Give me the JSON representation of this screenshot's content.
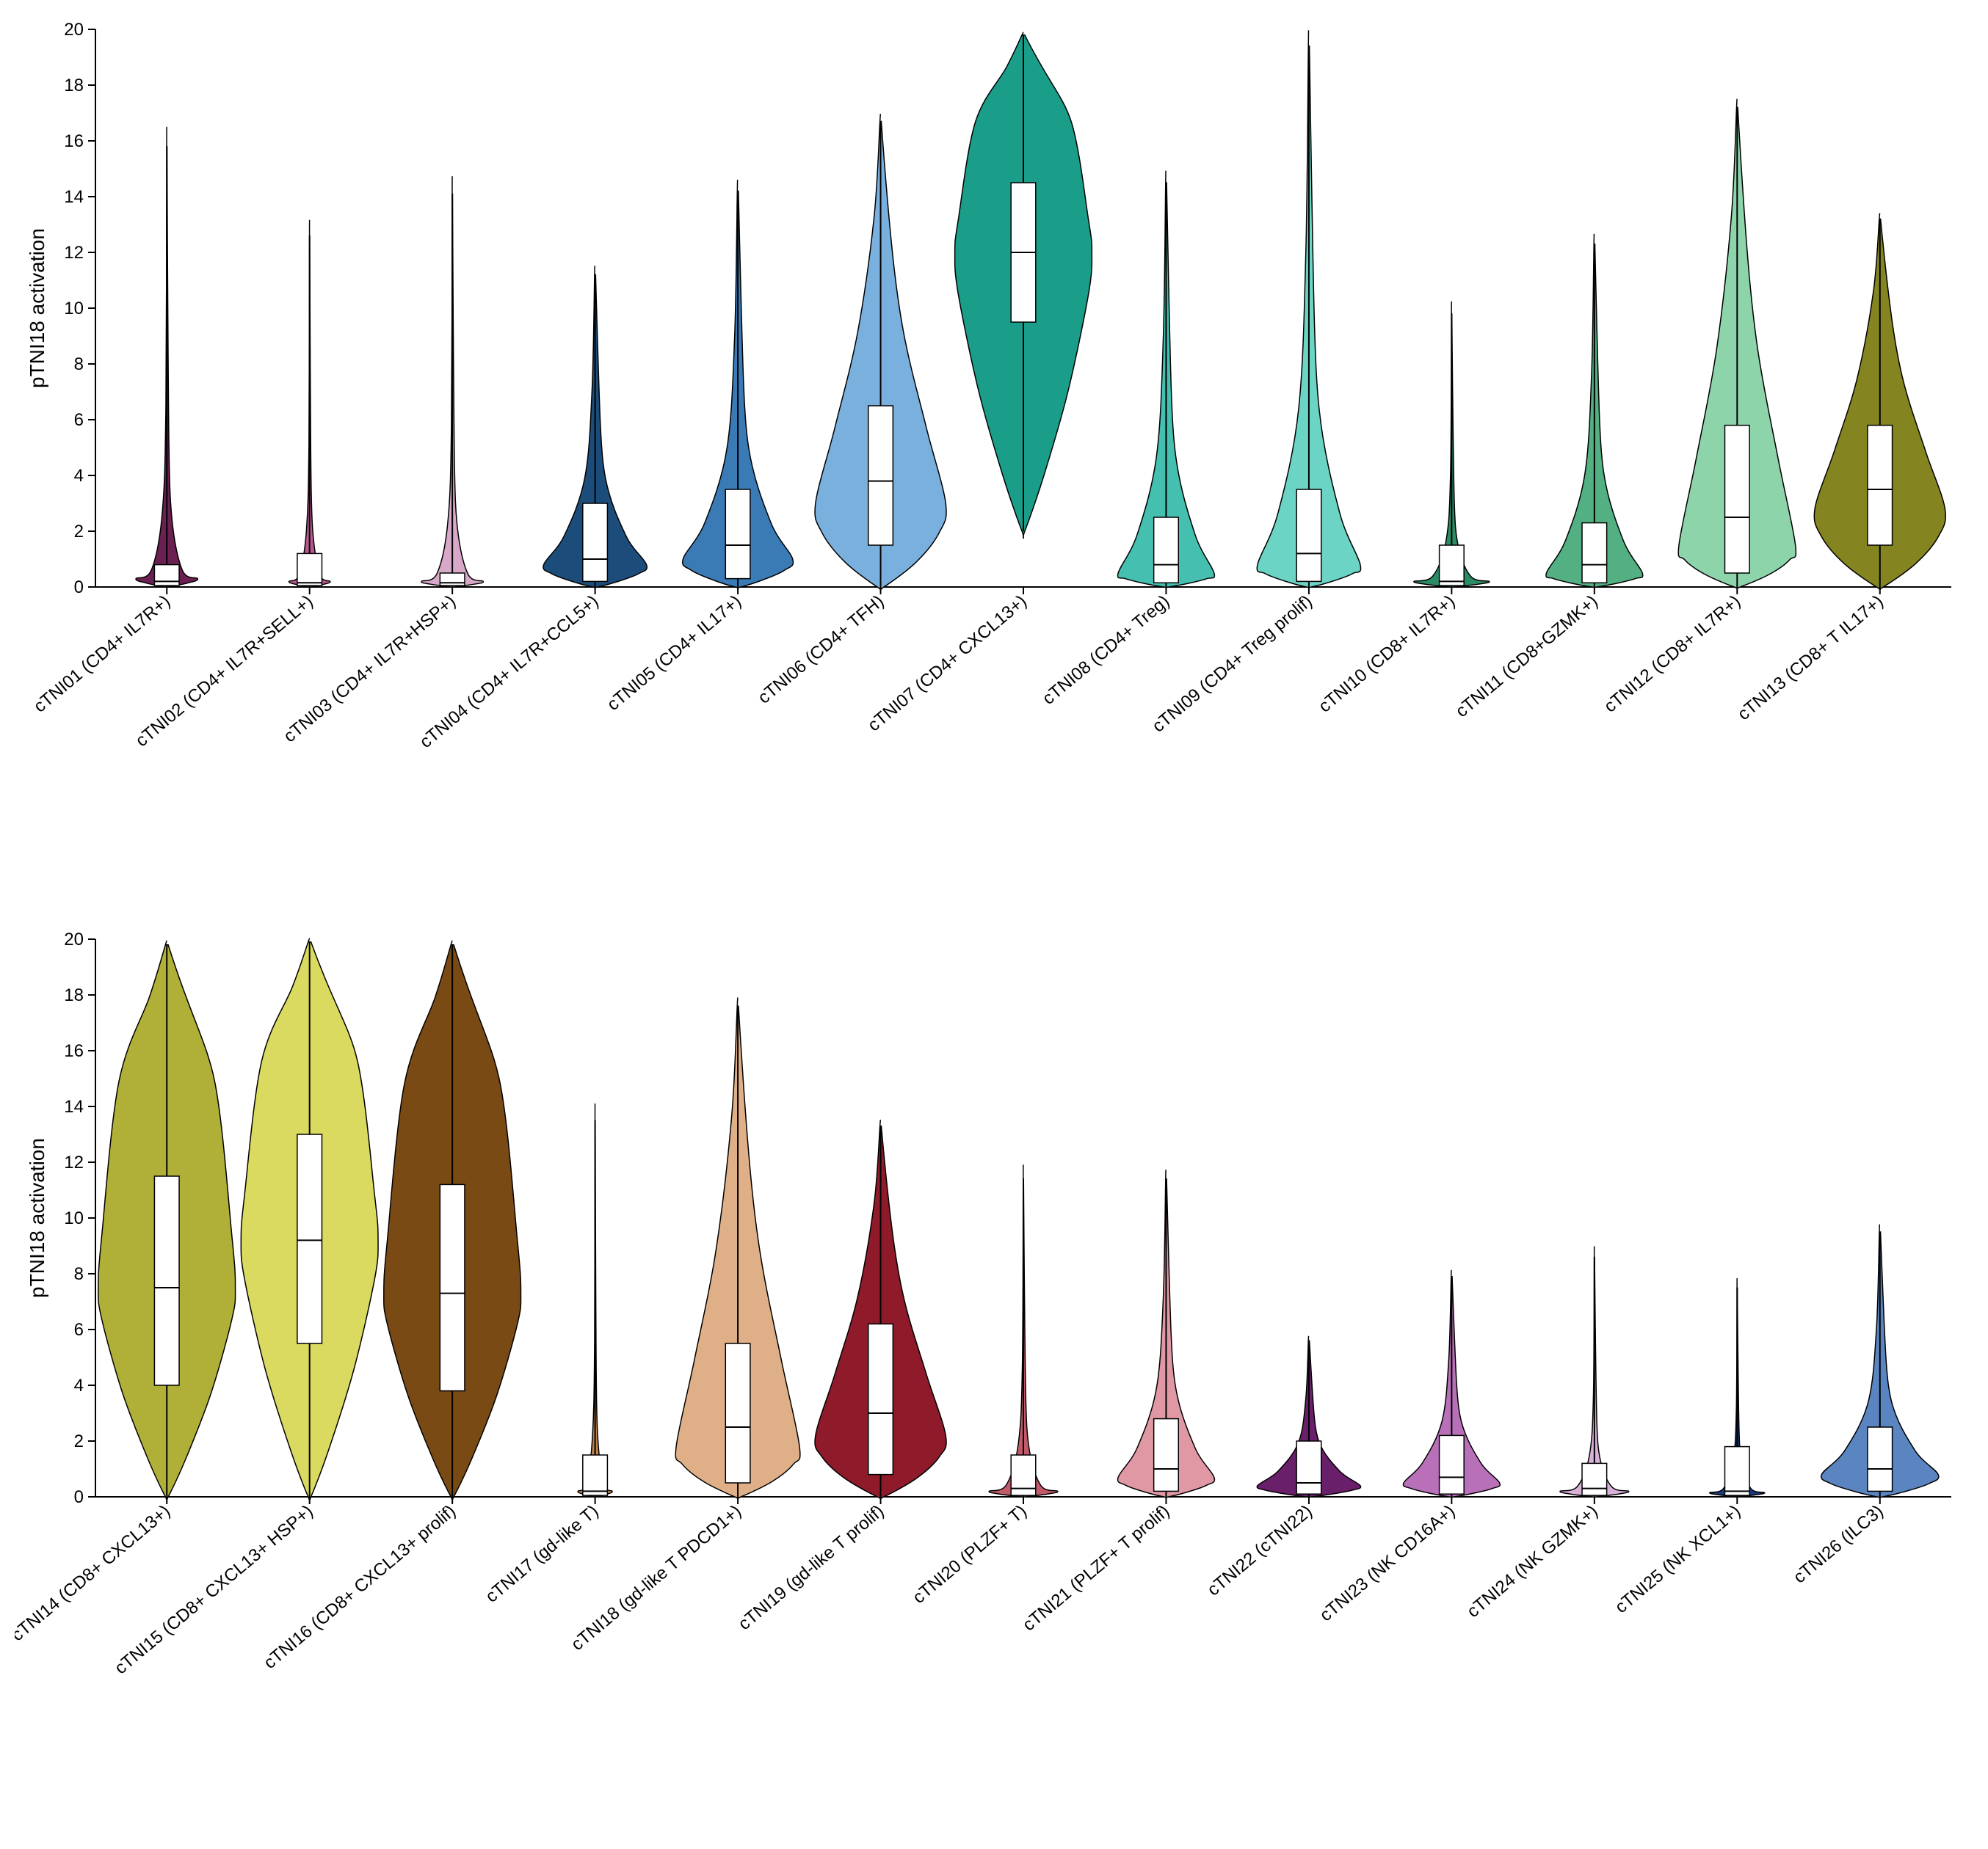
{
  "ylabel": "pTNI18 activation",
  "ylim": [
    0,
    20
  ],
  "yticks": [
    0,
    2,
    4,
    6,
    8,
    10,
    12,
    14,
    16,
    18,
    20
  ],
  "label_fontsize": 28,
  "tick_fontsize": 24,
  "background_color": "#ffffff",
  "axis_color": "#000000",
  "panels": [
    {
      "violins": [
        {
          "label": "cTNI01 (CD4+ IL7R+)",
          "color": "#6b2052",
          "median": 0.2,
          "q1": 0.05,
          "q3": 0.8,
          "whisker_low": 0,
          "whisker_high": 15.8,
          "body_peak": 0.3,
          "max_width": 0.45,
          "shape": "bottom-narrow"
        },
        {
          "label": "cTNI02 (CD4+ IL7R+SELL+)",
          "color": "#b85891",
          "median": 0.15,
          "q1": 0.05,
          "q3": 1.2,
          "whisker_low": 0,
          "whisker_high": 12.6,
          "body_peak": 0.2,
          "max_width": 0.3,
          "shape": "very-bottom"
        },
        {
          "label": "cTNI03 (CD4+ IL7R+HSP+)",
          "color": "#d8a8c8",
          "median": 0.15,
          "q1": 0.05,
          "q3": 0.5,
          "whisker_low": 0,
          "whisker_high": 14.1,
          "body_peak": 0.2,
          "max_width": 0.45,
          "shape": "very-bottom"
        },
        {
          "label": "cTNI04 (CD4+ IL7R+CCL5+)",
          "color": "#1c4d7a",
          "median": 1.0,
          "q1": 0.2,
          "q3": 3.0,
          "whisker_low": 0,
          "whisker_high": 11.2,
          "body_peak": 0.8,
          "max_width": 0.75,
          "shape": "bulb-low"
        },
        {
          "label": "cTNI05 (CD4+ IL17+)",
          "color": "#3a7ab5",
          "median": 1.5,
          "q1": 0.3,
          "q3": 3.5,
          "whisker_low": 0,
          "whisker_high": 14.2,
          "body_peak": 1.0,
          "max_width": 0.8,
          "shape": "bulb-low"
        },
        {
          "label": "cTNI06 (CD4+ TFH)",
          "color": "#7ab0de",
          "median": 3.8,
          "q1": 1.5,
          "q3": 6.5,
          "whisker_low": 0,
          "whisker_high": 16.7,
          "body_peak": 3.0,
          "max_width": 0.95,
          "shape": "teardrop"
        },
        {
          "label": "cTNI07 (CD4+ CXCL13+)",
          "color": "#1a9e8a",
          "median": 12.0,
          "q1": 9.5,
          "q3": 14.5,
          "whisker_low": 2.0,
          "whisker_high": 19.8,
          "body_peak": 12.0,
          "max_width": 1.0,
          "shape": "middle-bulge"
        },
        {
          "label": "cTNI08 (CD4+ Treg)",
          "color": "#45c0b0",
          "median": 0.8,
          "q1": 0.15,
          "q3": 2.5,
          "whisker_low": 0,
          "whisker_high": 14.5,
          "body_peak": 0.5,
          "max_width": 0.7,
          "shape": "bulb-low"
        },
        {
          "label": "cTNI09 (CD4+ Treg prolif)",
          "color": "#6bd4c4",
          "median": 1.2,
          "q1": 0.2,
          "q3": 3.5,
          "whisker_low": 0,
          "whisker_high": 19.4,
          "body_peak": 0.8,
          "max_width": 0.75,
          "shape": "bulb-low-tall"
        },
        {
          "label": "cTNI10 (CD8+ IL7R+)",
          "color": "#2a8b65",
          "median": 0.2,
          "q1": 0.05,
          "q3": 1.5,
          "whisker_low": 0,
          "whisker_high": 9.8,
          "body_peak": 0.2,
          "max_width": 0.55,
          "shape": "very-bottom"
        },
        {
          "label": "cTNI11 (CD8+GZMK+)",
          "color": "#52b082",
          "median": 0.8,
          "q1": 0.15,
          "q3": 2.3,
          "whisker_low": 0,
          "whisker_high": 12.3,
          "body_peak": 0.5,
          "max_width": 0.7,
          "shape": "bulb-low"
        },
        {
          "label": "cTNI12 (CD8+ IL7R+)",
          "color": "#8dd4ab",
          "median": 2.5,
          "q1": 0.5,
          "q3": 5.8,
          "whisker_low": 0,
          "whisker_high": 17.2,
          "body_peak": 1.5,
          "max_width": 0.85,
          "shape": "teardrop"
        },
        {
          "label": "cTNI13 (CD8+ T IL17+)",
          "color": "#848420",
          "median": 3.5,
          "q1": 1.5,
          "q3": 5.8,
          "whisker_low": 0,
          "whisker_high": 13.2,
          "body_peak": 2.8,
          "max_width": 0.95,
          "shape": "teardrop"
        }
      ]
    },
    {
      "violins": [
        {
          "label": "cTNI14 (CD8+ CXCL13+)",
          "color": "#b0b038",
          "median": 7.5,
          "q1": 4.0,
          "q3": 11.5,
          "whisker_low": 0,
          "whisker_high": 19.8,
          "body_peak": 7.5,
          "max_width": 1.0,
          "shape": "middle-bulge"
        },
        {
          "label": "cTNI15 (CD8+ CXCL13+ HSP+)",
          "color": "#dada60",
          "median": 9.2,
          "q1": 5.5,
          "q3": 13.0,
          "whisker_low": 0,
          "whisker_high": 19.9,
          "body_peak": 9.0,
          "max_width": 1.0,
          "shape": "middle-bulge"
        },
        {
          "label": "cTNI16 (CD8+ CXCL13+ prolif)",
          "color": "#7a4a15",
          "median": 7.3,
          "q1": 3.8,
          "q3": 11.2,
          "whisker_low": 0,
          "whisker_high": 19.8,
          "body_peak": 7.0,
          "max_width": 1.0,
          "shape": "middle-bulge"
        },
        {
          "label": "cTNI17 (gd-like T)",
          "color": "#c08550",
          "median": 0.2,
          "q1": 0.05,
          "q3": 1.5,
          "whisker_low": 0,
          "whisker_high": 13.5,
          "body_peak": 0.2,
          "max_width": 0.25,
          "shape": "very-bottom"
        },
        {
          "label": "cTNI18 (gd-like T PDCD1+)",
          "color": "#dfb088",
          "median": 2.5,
          "q1": 0.5,
          "q3": 5.5,
          "whisker_low": 0,
          "whisker_high": 17.6,
          "body_peak": 1.8,
          "max_width": 0.9,
          "shape": "teardrop"
        },
        {
          "label": "cTNI19 (gd-like T prolif)",
          "color": "#8e1a2a",
          "median": 3.0,
          "q1": 0.8,
          "q3": 6.2,
          "whisker_low": 0,
          "whisker_high": 13.3,
          "body_peak": 2.2,
          "max_width": 0.95,
          "shape": "teardrop"
        },
        {
          "label": "cTNI20 (PLZF+ T)",
          "color": "#c25a6a",
          "median": 0.3,
          "q1": 0.05,
          "q3": 1.5,
          "whisker_low": 0,
          "whisker_high": 11.4,
          "body_peak": 0.2,
          "max_width": 0.5,
          "shape": "very-bottom"
        },
        {
          "label": "cTNI21 (PLZF+ T prolif)",
          "color": "#e098a4",
          "median": 1.0,
          "q1": 0.2,
          "q3": 2.8,
          "whisker_low": 0,
          "whisker_high": 11.4,
          "body_peak": 0.7,
          "max_width": 0.7,
          "shape": "bulb-low"
        },
        {
          "label": "cTNI22 (cTNI22)",
          "color": "#6a1f6a",
          "median": 0.5,
          "q1": 0.1,
          "q3": 2.0,
          "whisker_low": 0,
          "whisker_high": 5.6,
          "body_peak": 0.4,
          "max_width": 0.75,
          "shape": "bulb-low-short"
        },
        {
          "label": "cTNI23 (NK CD16A+)",
          "color": "#b870b8",
          "median": 0.7,
          "q1": 0.1,
          "q3": 2.2,
          "whisker_low": 0,
          "whisker_high": 7.9,
          "body_peak": 0.5,
          "max_width": 0.7,
          "shape": "bulb-low"
        },
        {
          "label": "cTNI24 (NK GZMK+)",
          "color": "#d8b0d8",
          "median": 0.3,
          "q1": 0.05,
          "q3": 1.2,
          "whisker_low": 0,
          "whisker_high": 8.6,
          "body_peak": 0.2,
          "max_width": 0.5,
          "shape": "very-bottom"
        },
        {
          "label": "cTNI25 (NK XCL1+)",
          "color": "#1a3a7a",
          "median": 0.2,
          "q1": 0.05,
          "q3": 1.8,
          "whisker_low": 0,
          "whisker_high": 7.5,
          "body_peak": 0.15,
          "max_width": 0.4,
          "shape": "very-bottom"
        },
        {
          "label": "cTNI26 (ILC3)",
          "color": "#5a85c0",
          "median": 1.0,
          "q1": 0.2,
          "q3": 2.5,
          "whisker_low": 0,
          "whisker_high": 9.5,
          "body_peak": 0.8,
          "max_width": 0.85,
          "shape": "bulb-low"
        }
      ]
    }
  ]
}
